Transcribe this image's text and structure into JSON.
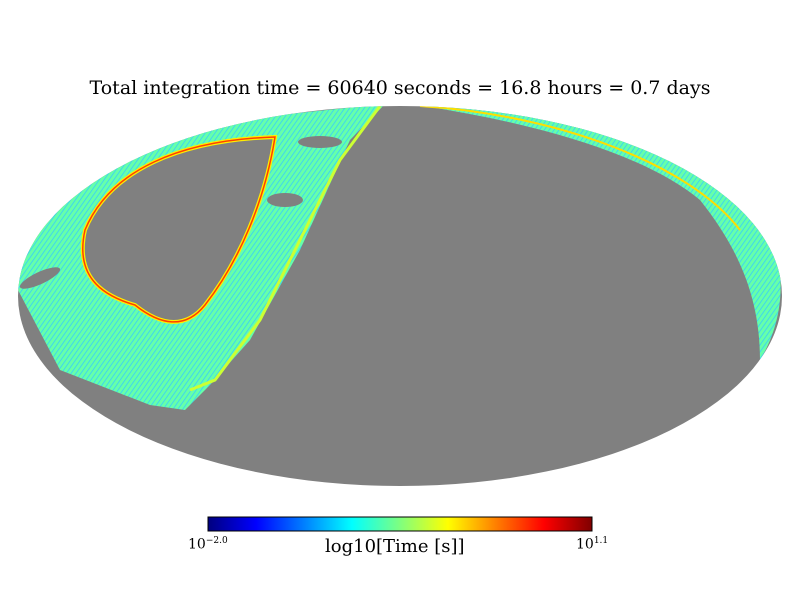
{
  "chart_data": {
    "type": "heatmap",
    "projection": "mollweide",
    "title": "Total integration time = 60640 seconds = 16.8 hours = 0.7 days",
    "colorbar": {
      "label": "log10[Time [s]]",
      "min_base": "10",
      "min_exp": "−2.0",
      "max_base": "10",
      "max_exp": "1.1",
      "range": [
        -2.0,
        1.1
      ],
      "colormap": "jet"
    },
    "unobserved_color": "#808080",
    "jet_colors": [
      "#00007f",
      "#0000ff",
      "#007fff",
      "#00ffff",
      "#7fff7f",
      "#ffff00",
      "#ff7f00",
      "#ff0000",
      "#7f0000"
    ]
  }
}
